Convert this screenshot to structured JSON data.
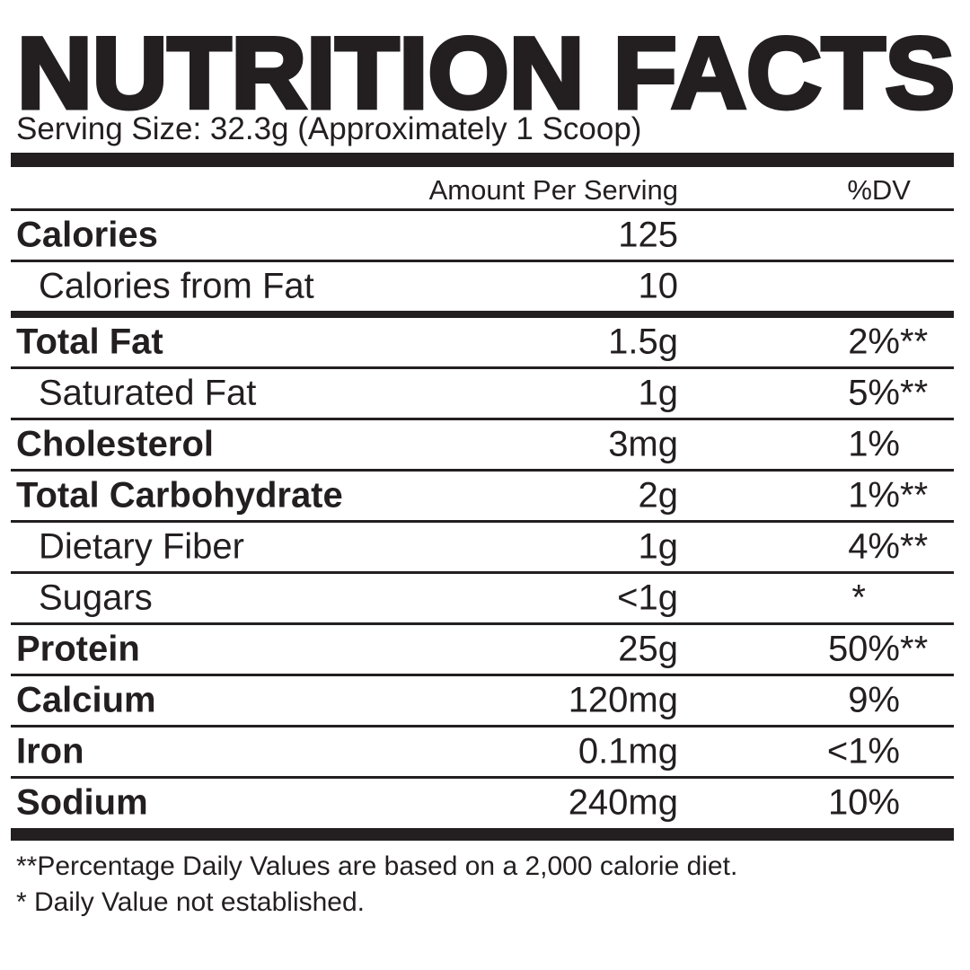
{
  "title": "NUTRITION FACTS",
  "serving_size": "Serving Size: 32.3g (Approximately 1 Scoop)",
  "header": {
    "amount": "Amount Per Serving",
    "dv": "%DV"
  },
  "rows": [
    {
      "label": "Calories",
      "amount": "125",
      "dv": "",
      "note": ""
    },
    {
      "label": "Calories from Fat",
      "amount": "10",
      "dv": "",
      "note": ""
    },
    {
      "label": "Total Fat",
      "amount": "1.5g",
      "dv": "2%",
      "note": "**"
    },
    {
      "label": "Saturated Fat",
      "amount": "1g",
      "dv": "5%",
      "note": "**"
    },
    {
      "label": "Cholesterol",
      "amount": "3mg",
      "dv": "1%",
      "note": ""
    },
    {
      "label": "Total Carbohydrate",
      "amount": "2g",
      "dv": "1%",
      "note": "**"
    },
    {
      "label": "Dietary Fiber",
      "amount": "1g",
      "dv": "4%",
      "note": "**"
    },
    {
      "label": "Sugars",
      "amount": "<1g",
      "dv": "*",
      "note": ""
    },
    {
      "label": "Protein",
      "amount": "25g",
      "dv": "50%",
      "note": "**"
    },
    {
      "label": "Calcium",
      "amount": "120mg",
      "dv": "9%",
      "note": ""
    },
    {
      "label": "Iron",
      "amount": "0.1mg",
      "dv": "<1%",
      "note": ""
    },
    {
      "label": "Sodium",
      "amount": "240mg",
      "dv": "10%",
      "note": ""
    }
  ],
  "footnotes": [
    "**Percentage Daily Values are based on a 2,000 calorie diet.",
    "* Daily Value not established."
  ]
}
